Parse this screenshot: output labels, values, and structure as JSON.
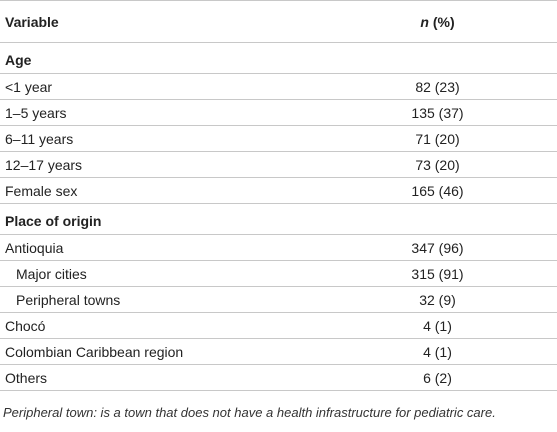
{
  "header": {
    "variable": "Variable",
    "n_italic": "n",
    "percent": " (%)"
  },
  "rows": [
    {
      "label": "Age",
      "value": "",
      "type": "section"
    },
    {
      "label": "<1 year",
      "value": "82 (23)",
      "type": "data"
    },
    {
      "label": "1–5 years",
      "value": "135 (37)",
      "type": "data"
    },
    {
      "label": "6–11 years",
      "value": "71 (20)",
      "type": "data"
    },
    {
      "label": "12–17 years",
      "value": "73 (20)",
      "type": "data"
    },
    {
      "label": "Female sex",
      "value": "165 (46)",
      "type": "data"
    },
    {
      "label": "Place of origin",
      "value": "",
      "type": "section"
    },
    {
      "label": "Antioquia",
      "value": "347 (96)",
      "type": "data"
    },
    {
      "label": "Major cities",
      "value": "315 (91)",
      "type": "indent"
    },
    {
      "label": "Peripheral towns",
      "value": "32 (9)",
      "type": "indent"
    },
    {
      "label": "Chocó",
      "value": "4 (1)",
      "type": "data"
    },
    {
      "label": "Colombian Caribbean region",
      "value": "4 (1)",
      "type": "data"
    },
    {
      "label": "Others",
      "value": "6 (2)",
      "type": "data"
    }
  ],
  "footnote": "Peripheral town: is a town that does not have a health infrastructure for pediatric care."
}
